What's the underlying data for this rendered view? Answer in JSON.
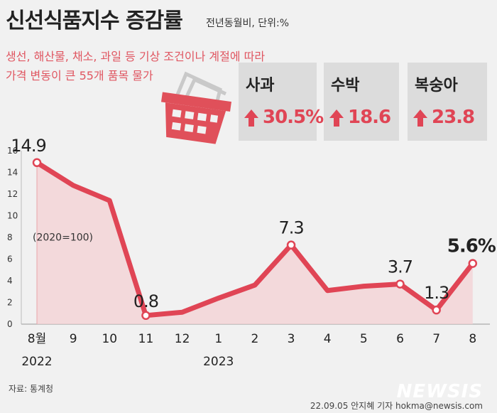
{
  "title": "신선식품지수 증감률",
  "unit": "전년동월비, 단위:%",
  "description": [
    "생선, 해산물, 채소, 과일 등 기상 조건이나 계절에 따라",
    "가격 변동이 큰 55개 품목 물가"
  ],
  "cards": [
    {
      "name": "사과",
      "value": "30.5%"
    },
    {
      "name": "수박",
      "value": "18.6"
    },
    {
      "name": "복숭아",
      "value": "23.8"
    }
  ],
  "colors": {
    "accent": "#e04555",
    "card_bg": "#dcdcdc",
    "area": "#f3d0d3",
    "basket": "#e0505a"
  },
  "icons": [
    "basket-icon",
    "arrow-up-icon"
  ],
  "chart_data": {
    "type": "area",
    "categories": [
      "8월",
      "9",
      "10",
      "11",
      "12",
      "1",
      "2",
      "3",
      "4",
      "5",
      "6",
      "7",
      "8"
    ],
    "year_labels": [
      {
        "label": "2022",
        "index": 0
      },
      {
        "label": "2023",
        "index": 5
      }
    ],
    "values": [
      14.9,
      12.8,
      11.4,
      0.8,
      1.1,
      2.4,
      3.6,
      7.3,
      3.1,
      3.5,
      3.7,
      1.3,
      5.6
    ],
    "labeled_points": [
      {
        "index": 0,
        "label": "14.9"
      },
      {
        "index": 3,
        "label": "0.8"
      },
      {
        "index": 7,
        "label": "7.3"
      },
      {
        "index": 10,
        "label": "3.7"
      },
      {
        "index": 11,
        "label": "1.3"
      },
      {
        "index": 12,
        "label": "5.6%"
      }
    ],
    "annotation": "(2020=100)",
    "yticks": [
      0,
      2,
      4,
      6,
      8,
      10,
      12,
      14,
      16
    ],
    "ylim": [
      0,
      16
    ],
    "grid": false
  },
  "source": "자료: 통계청",
  "credit": "22.09.05 안지혜 기자 hokma@newsis.com",
  "logo": "NEWSIS"
}
